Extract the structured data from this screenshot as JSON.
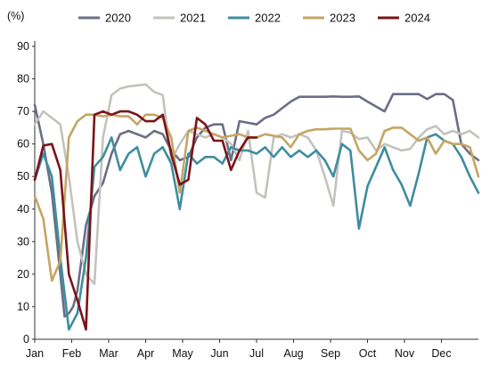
{
  "chart_data": {
    "type": "line",
    "unit_label": "(%)",
    "title": "",
    "xlabel": "",
    "ylabel": "",
    "ylim": [
      0,
      90
    ],
    "y_ticks": [
      0,
      10,
      20,
      30,
      40,
      50,
      60,
      70,
      80,
      90
    ],
    "x_domain_weeks": [
      0,
      52
    ],
    "x_tick_labels": [
      "Jan",
      "Feb",
      "Mar",
      "Apr",
      "May",
      "Jun",
      "Jul",
      "Aug",
      "Sep",
      "Oct",
      "Nov",
      "Dec"
    ],
    "grid": false,
    "legend": "top",
    "series": [
      {
        "name": "2020",
        "color": "#6b6e85",
        "x": [
          0,
          1,
          2,
          3,
          3.5,
          4,
          4.5,
          5,
          6,
          7,
          8,
          9,
          10,
          11,
          12,
          13,
          14,
          15,
          16,
          17,
          18,
          19,
          20,
          21,
          22,
          23,
          24,
          25,
          26,
          27,
          28,
          29,
          30,
          31,
          32,
          33,
          34,
          35,
          36,
          37,
          38,
          39,
          40,
          41,
          42,
          43,
          44,
          45,
          46,
          47,
          48,
          49,
          50,
          51,
          52
        ],
        "values": [
          72,
          60,
          45,
          20,
          7,
          8,
          10,
          15,
          35,
          44,
          48,
          57,
          63,
          64,
          63,
          62,
          64,
          63,
          58,
          55,
          56,
          62,
          65,
          66,
          66,
          55,
          67,
          66.5,
          66,
          68,
          69,
          71,
          73,
          74.5,
          74.5,
          74.5,
          74.5,
          74.6,
          74.5,
          74.5,
          74.6,
          73,
          71.5,
          70,
          75.3,
          75.3,
          75.3,
          75.3,
          73.8,
          75.3,
          75.3,
          73.5,
          60,
          57,
          55
        ]
      },
      {
        "name": "2021",
        "color": "#c3c3bd",
        "x": [
          0,
          1,
          2,
          3,
          4,
          5,
          6,
          7,
          8,
          9,
          10,
          11,
          12,
          13,
          14,
          15,
          16,
          17,
          18,
          19,
          20,
          21,
          22,
          23,
          24,
          25,
          26,
          27,
          28,
          29,
          30,
          31,
          32,
          33,
          34,
          35,
          36,
          37,
          38,
          39,
          40,
          41,
          42,
          43,
          44,
          45,
          46,
          47,
          48,
          49,
          50,
          51,
          52
        ],
        "values": [
          66,
          70,
          68,
          66,
          50,
          30,
          20,
          17,
          62,
          75,
          77,
          77.7,
          78,
          78.3,
          76,
          75,
          55,
          60,
          64,
          63,
          62,
          63,
          62,
          60,
          55,
          64,
          45,
          43.5,
          62,
          63,
          62,
          63,
          62,
          58,
          50,
          41,
          64,
          63.5,
          61.5,
          62,
          58,
          60,
          59,
          58,
          58.5,
          62,
          64.5,
          65.5,
          63,
          64,
          63,
          64,
          62
        ]
      },
      {
        "name": "2022",
        "color": "#3f8d9e",
        "x": [
          0,
          1,
          2,
          3,
          4,
          5,
          6,
          7,
          8,
          9,
          10,
          11,
          12,
          13,
          14,
          15,
          16,
          17,
          18,
          19,
          20,
          21,
          22,
          23,
          24,
          25,
          26,
          27,
          28,
          29,
          30,
          31,
          32,
          33,
          34,
          35,
          36,
          37,
          38,
          39,
          40,
          41,
          42,
          43,
          44,
          45,
          46,
          47,
          48,
          49,
          50,
          51,
          52
        ],
        "values": [
          49,
          57,
          50,
          25,
          3,
          8,
          25,
          53,
          56,
          62,
          52,
          57,
          59,
          50,
          57,
          59,
          54,
          40,
          57,
          54,
          56,
          56,
          54,
          59,
          58,
          58,
          57,
          59,
          56,
          59,
          56,
          58,
          56,
          58,
          55,
          50,
          60,
          58,
          34,
          47,
          53,
          59,
          52,
          47.5,
          41,
          51,
          62,
          63,
          61,
          60,
          56,
          50,
          45
        ]
      },
      {
        "name": "2023",
        "color": "#c4a564",
        "x": [
          0,
          1,
          2,
          3,
          4,
          5,
          6,
          7,
          8,
          9,
          10,
          11,
          12,
          13,
          14,
          15,
          16,
          17,
          18,
          19,
          20,
          21,
          22,
          23,
          24,
          25,
          26,
          27,
          28,
          29,
          30,
          31,
          32,
          33,
          34,
          35,
          36,
          37,
          38,
          39,
          40,
          41,
          42,
          43,
          44,
          45,
          46,
          47,
          48,
          49,
          50,
          51,
          52
        ],
        "values": [
          44,
          37,
          18,
          24,
          62,
          67,
          69,
          69,
          68.5,
          69,
          68.5,
          68.5,
          66,
          69,
          69,
          68,
          62,
          45,
          64,
          65,
          64,
          63,
          62,
          62.5,
          63,
          62,
          62,
          63,
          62.5,
          62,
          59,
          63,
          64,
          64.5,
          64.5,
          64.7,
          64.7,
          64.7,
          58,
          55,
          57,
          64,
          65,
          65,
          63,
          61,
          62,
          57,
          61,
          60,
          60,
          59,
          50
        ]
      },
      {
        "name": "2024",
        "color": "#7a1419",
        "x": [
          0,
          1,
          2,
          3,
          4,
          5,
          6,
          7,
          8,
          9,
          10,
          11,
          12,
          13,
          14,
          15,
          16,
          17,
          18,
          19,
          20,
          21,
          22,
          23,
          24,
          25,
          26
        ],
        "values": [
          49,
          59.5,
          60,
          52,
          20,
          12,
          3,
          69,
          70,
          69,
          70,
          70,
          69,
          67,
          67,
          69,
          57,
          47.5,
          49,
          68,
          66,
          61,
          61,
          52,
          58,
          62,
          62
        ]
      }
    ]
  }
}
